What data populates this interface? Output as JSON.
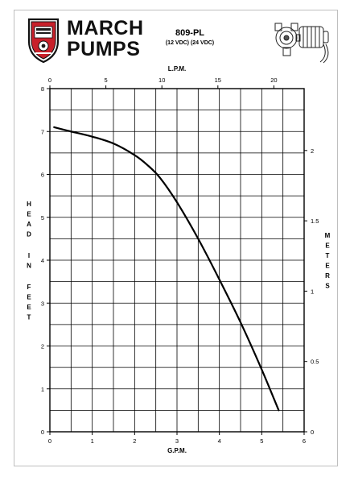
{
  "brand": {
    "line1": "MARCH",
    "line2": "PUMPS"
  },
  "model": {
    "name": "809-PL",
    "voltage": "(12 VDC) (24 VDC)"
  },
  "icons": {
    "logo": "march-shield-logo",
    "pump": "pump-motor-drawing"
  },
  "chart_data": {
    "type": "line",
    "xlabel": "G.P.M.",
    "ylabel": "HEAD IN FEET",
    "x2label": "L.P.M.",
    "y2label": "METERS",
    "xlim": [
      0,
      6
    ],
    "ylim": [
      0,
      8
    ],
    "x2lim": [
      0,
      22.7
    ],
    "y2lim": [
      0,
      2.44
    ],
    "x_ticks": [
      "0",
      "1",
      "2",
      "3",
      "4",
      "5",
      "6"
    ],
    "y_ticks": [
      "0",
      "1",
      "2",
      "3",
      "4",
      "5",
      "6",
      "7",
      "8"
    ],
    "x2_ticks": [
      "0",
      "5",
      "10",
      "15",
      "20"
    ],
    "y2_ticks": [
      "0",
      "0.5",
      "1",
      "1.5",
      "2"
    ],
    "grid": true,
    "line_color": "#000000",
    "x": [
      0.1,
      0.5,
      1.0,
      1.5,
      2.0,
      2.3,
      2.6,
      3.0,
      3.5,
      4.0,
      4.5,
      5.0,
      5.4
    ],
    "y": [
      7.1,
      7.0,
      6.88,
      6.72,
      6.45,
      6.22,
      5.92,
      5.35,
      4.5,
      3.55,
      2.55,
      1.45,
      0.5
    ]
  }
}
